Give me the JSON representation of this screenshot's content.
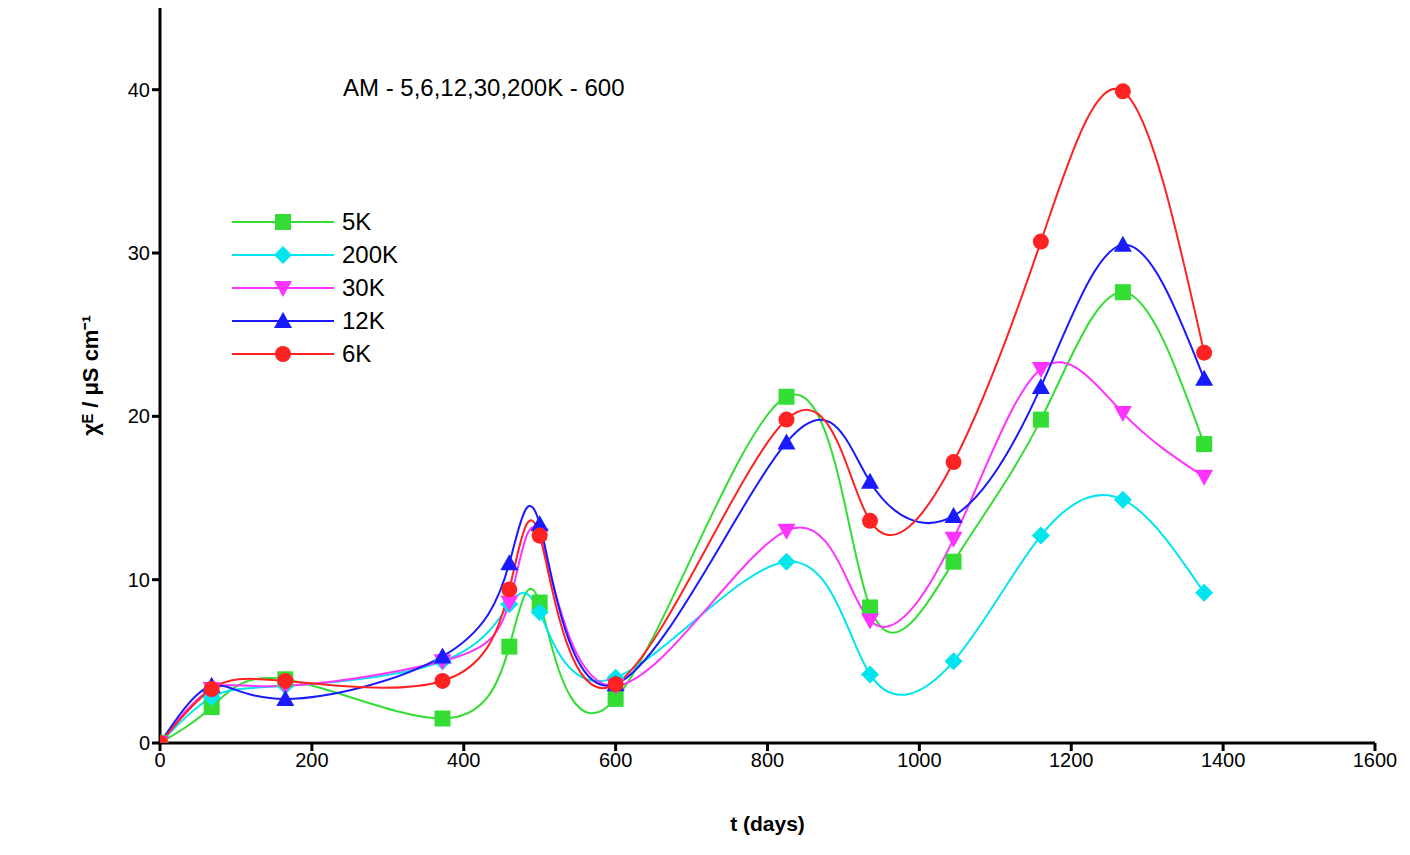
{
  "chart_data": {
    "type": "line",
    "annotations": [
      {
        "text": "AM - 5,6,12,30,200K - 600"
      }
    ],
    "x_label": "t (days)",
    "y_label": "χᴱ / μS cm⁻¹",
    "x": [
      0,
      68,
      165,
      372,
      460,
      500,
      600,
      825,
      935,
      1045,
      1160,
      1268,
      1375
    ],
    "xlim": [
      0,
      1600
    ],
    "xticks": [
      0,
      200,
      400,
      600,
      800,
      1000,
      1200,
      1400,
      1600
    ],
    "ylim": [
      0,
      45
    ],
    "yticks": [
      0,
      10,
      20,
      30,
      40
    ],
    "grid": false,
    "legend": "upper left",
    "series": [
      {
        "name": "5K",
        "color": "#33dd33",
        "marker": "square",
        "values": [
          0,
          2.2,
          3.9,
          1.5,
          5.9,
          8.6,
          2.7,
          21.2,
          8.3,
          11.1,
          19.8,
          27.6,
          18.3
        ]
      },
      {
        "name": "200K",
        "color": "#00e5ee",
        "marker": "diamond",
        "values": [
          0,
          2.8,
          3.5,
          5.0,
          8.5,
          8.0,
          4.0,
          11.1,
          4.2,
          5.0,
          12.7,
          14.9,
          9.2
        ]
      },
      {
        "name": "30K",
        "color": "#ff33ff",
        "marker": "triangle-down",
        "values": [
          0,
          3.3,
          3.5,
          5.0,
          8.6,
          12.7,
          3.5,
          13.0,
          7.5,
          12.5,
          22.9,
          20.2,
          16.3
        ]
      },
      {
        "name": "12K",
        "color": "#1a1aff",
        "marker": "triangle",
        "values": [
          0,
          3.5,
          2.7,
          5.3,
          11.0,
          13.4,
          3.6,
          18.4,
          16.0,
          13.9,
          21.8,
          30.5,
          22.3
        ]
      },
      {
        "name": "6K",
        "color": "#ff2222",
        "marker": "circle",
        "values": [
          0,
          3.3,
          3.8,
          3.8,
          9.4,
          12.7,
          3.6,
          19.8,
          13.6,
          17.2,
          30.7,
          39.9,
          23.9
        ]
      }
    ]
  }
}
